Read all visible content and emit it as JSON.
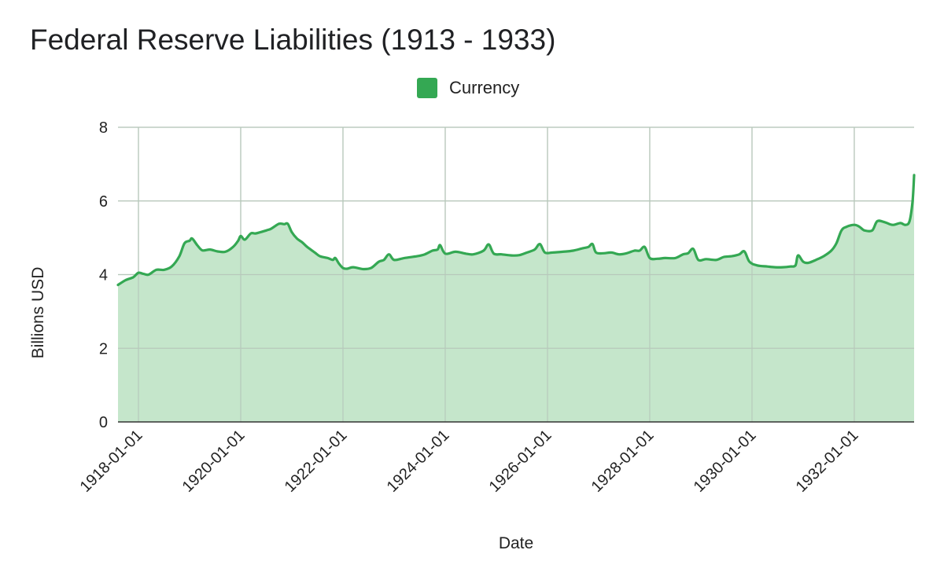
{
  "chart_data": {
    "type": "area",
    "title": "Federal Reserve Liabilities (1913 - 1933)",
    "xlabel": "Date",
    "ylabel": "Billions USD",
    "ylim": [
      0,
      8
    ],
    "yticks": [
      "0",
      "2",
      "4",
      "6",
      "8"
    ],
    "xlim": [
      1917.6,
      1933.17
    ],
    "xticks": [
      {
        "label": "1918-01-01",
        "value": 1918
      },
      {
        "label": "1920-01-01",
        "value": 1920
      },
      {
        "label": "1922-01-01",
        "value": 1922
      },
      {
        "label": "1924-01-01",
        "value": 1924
      },
      {
        "label": "1926-01-01",
        "value": 1926
      },
      {
        "label": "1928-01-01",
        "value": 1928
      },
      {
        "label": "1930-01-01",
        "value": 1930
      },
      {
        "label": "1932-01-01",
        "value": 1932
      }
    ],
    "grid": true,
    "legend_position": "top-center",
    "series": [
      {
        "name": "Currency",
        "color": "#34a853",
        "fill_color": "#c5e6cb",
        "points": [
          [
            1917.6,
            3.72
          ],
          [
            1917.75,
            3.85
          ],
          [
            1917.9,
            3.93
          ],
          [
            1918.0,
            4.05
          ],
          [
            1918.1,
            4.02
          ],
          [
            1918.2,
            4.0
          ],
          [
            1918.35,
            4.13
          ],
          [
            1918.5,
            4.13
          ],
          [
            1918.65,
            4.22
          ],
          [
            1918.8,
            4.5
          ],
          [
            1918.9,
            4.85
          ],
          [
            1919.0,
            4.92
          ],
          [
            1919.05,
            4.98
          ],
          [
            1919.15,
            4.8
          ],
          [
            1919.25,
            4.66
          ],
          [
            1919.4,
            4.68
          ],
          [
            1919.55,
            4.63
          ],
          [
            1919.7,
            4.62
          ],
          [
            1919.85,
            4.75
          ],
          [
            1919.95,
            4.92
          ],
          [
            1920.0,
            5.05
          ],
          [
            1920.08,
            4.95
          ],
          [
            1920.2,
            5.12
          ],
          [
            1920.3,
            5.12
          ],
          [
            1920.5,
            5.2
          ],
          [
            1920.6,
            5.25
          ],
          [
            1920.75,
            5.38
          ],
          [
            1920.85,
            5.37
          ],
          [
            1920.92,
            5.38
          ],
          [
            1921.0,
            5.15
          ],
          [
            1921.1,
            4.98
          ],
          [
            1921.2,
            4.88
          ],
          [
            1921.3,
            4.75
          ],
          [
            1921.45,
            4.6
          ],
          [
            1921.55,
            4.5
          ],
          [
            1921.7,
            4.45
          ],
          [
            1921.8,
            4.4
          ],
          [
            1921.85,
            4.45
          ],
          [
            1921.92,
            4.3
          ],
          [
            1922.0,
            4.18
          ],
          [
            1922.08,
            4.16
          ],
          [
            1922.2,
            4.2
          ],
          [
            1922.4,
            4.15
          ],
          [
            1922.55,
            4.18
          ],
          [
            1922.7,
            4.35
          ],
          [
            1922.8,
            4.4
          ],
          [
            1922.9,
            4.55
          ],
          [
            1923.0,
            4.4
          ],
          [
            1923.2,
            4.45
          ],
          [
            1923.45,
            4.5
          ],
          [
            1923.6,
            4.55
          ],
          [
            1923.75,
            4.65
          ],
          [
            1923.85,
            4.68
          ],
          [
            1923.9,
            4.8
          ],
          [
            1924.0,
            4.57
          ],
          [
            1924.2,
            4.62
          ],
          [
            1924.4,
            4.57
          ],
          [
            1924.55,
            4.55
          ],
          [
            1924.75,
            4.65
          ],
          [
            1924.85,
            4.82
          ],
          [
            1924.95,
            4.57
          ],
          [
            1925.1,
            4.55
          ],
          [
            1925.3,
            4.52
          ],
          [
            1925.45,
            4.53
          ],
          [
            1925.6,
            4.6
          ],
          [
            1925.75,
            4.68
          ],
          [
            1925.85,
            4.83
          ],
          [
            1925.95,
            4.6
          ],
          [
            1926.1,
            4.6
          ],
          [
            1926.3,
            4.62
          ],
          [
            1926.5,
            4.65
          ],
          [
            1926.7,
            4.72
          ],
          [
            1926.8,
            4.75
          ],
          [
            1926.88,
            4.83
          ],
          [
            1926.95,
            4.6
          ],
          [
            1927.1,
            4.58
          ],
          [
            1927.25,
            4.6
          ],
          [
            1927.4,
            4.55
          ],
          [
            1927.55,
            4.58
          ],
          [
            1927.7,
            4.65
          ],
          [
            1927.8,
            4.65
          ],
          [
            1927.9,
            4.75
          ],
          [
            1928.0,
            4.45
          ],
          [
            1928.15,
            4.43
          ],
          [
            1928.3,
            4.45
          ],
          [
            1928.5,
            4.45
          ],
          [
            1928.65,
            4.55
          ],
          [
            1928.75,
            4.58
          ],
          [
            1928.85,
            4.7
          ],
          [
            1928.95,
            4.4
          ],
          [
            1929.1,
            4.42
          ],
          [
            1929.3,
            4.4
          ],
          [
            1929.45,
            4.48
          ],
          [
            1929.6,
            4.5
          ],
          [
            1929.75,
            4.55
          ],
          [
            1929.85,
            4.63
          ],
          [
            1929.95,
            4.35
          ],
          [
            1930.1,
            4.25
          ],
          [
            1930.3,
            4.22
          ],
          [
            1930.45,
            4.2
          ],
          [
            1930.6,
            4.2
          ],
          [
            1930.75,
            4.22
          ],
          [
            1930.85,
            4.25
          ],
          [
            1930.9,
            4.52
          ],
          [
            1931.0,
            4.35
          ],
          [
            1931.1,
            4.32
          ],
          [
            1931.25,
            4.4
          ],
          [
            1931.4,
            4.5
          ],
          [
            1931.55,
            4.65
          ],
          [
            1931.65,
            4.85
          ],
          [
            1931.75,
            5.2
          ],
          [
            1931.85,
            5.3
          ],
          [
            1932.0,
            5.35
          ],
          [
            1932.1,
            5.3
          ],
          [
            1932.2,
            5.2
          ],
          [
            1932.35,
            5.2
          ],
          [
            1932.45,
            5.45
          ],
          [
            1932.6,
            5.42
          ],
          [
            1932.75,
            5.35
          ],
          [
            1932.9,
            5.4
          ],
          [
            1933.0,
            5.35
          ],
          [
            1933.08,
            5.45
          ],
          [
            1933.14,
            6.0
          ],
          [
            1933.17,
            6.7
          ]
        ]
      }
    ]
  }
}
